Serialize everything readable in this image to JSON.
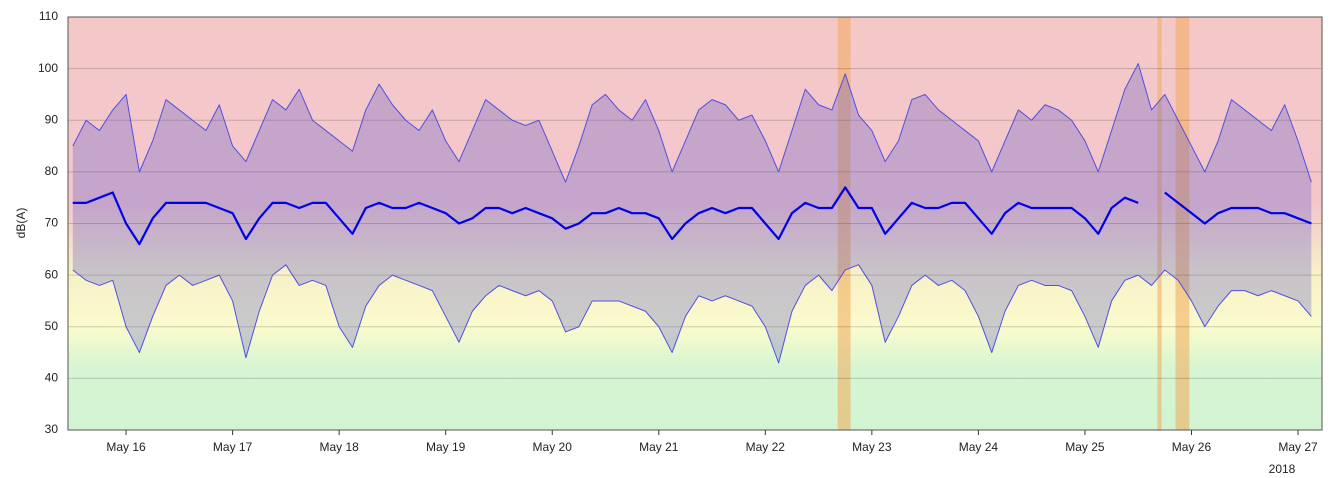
{
  "chart_data": {
    "type": "line",
    "ylabel": "dB(A)",
    "annotation": "2018",
    "x": [
      15.5,
      15.625,
      15.75,
      15.875,
      16,
      16.125,
      16.25,
      16.375,
      16.5,
      16.625,
      16.75,
      16.875,
      17,
      17.125,
      17.25,
      17.375,
      17.5,
      17.625,
      17.75,
      17.875,
      18,
      18.125,
      18.25,
      18.375,
      18.5,
      18.625,
      18.75,
      18.875,
      19,
      19.125,
      19.25,
      19.375,
      19.5,
      19.625,
      19.75,
      19.875,
      20,
      20.125,
      20.25,
      20.375,
      20.5,
      20.625,
      20.75,
      20.875,
      21,
      21.125,
      21.25,
      21.375,
      21.5,
      21.625,
      21.75,
      21.875,
      22,
      22.125,
      22.25,
      22.375,
      22.5,
      22.625,
      22.75,
      22.875,
      23,
      23.125,
      23.25,
      23.375,
      23.5,
      23.625,
      23.75,
      23.875,
      24,
      24.125,
      24.25,
      24.375,
      24.5,
      24.625,
      24.75,
      24.875,
      25,
      25.125,
      25.25,
      25.375,
      25.5,
      25.625,
      25.75,
      25.875,
      26,
      26.125,
      26.25,
      26.375,
      26.5,
      26.625,
      26.75,
      26.875,
      27,
      27.125
    ],
    "series": [
      {
        "color": "#5050e0",
        "line_width": 1,
        "values": [
          85,
          90,
          88,
          92,
          95,
          80,
          86,
          94,
          92,
          90,
          88,
          93,
          85,
          82,
          88,
          94,
          92,
          96,
          90,
          88,
          86,
          84,
          92,
          97,
          93,
          90,
          88,
          92,
          86,
          82,
          88,
          94,
          92,
          90,
          89,
          90,
          84,
          78,
          85,
          93,
          95,
          92,
          90,
          94,
          88,
          80,
          86,
          92,
          94,
          93,
          90,
          91,
          86,
          80,
          88,
          96,
          93,
          92,
          99,
          91,
          88,
          82,
          86,
          94,
          95,
          92,
          90,
          88,
          86,
          80,
          86,
          92,
          90,
          93,
          92,
          90,
          86,
          80,
          88,
          96,
          101,
          92,
          95,
          90,
          85,
          80,
          86,
          94,
          92,
          90,
          88,
          93,
          86,
          78
        ]
      },
      {
        "color": "#0000e6",
        "line_width": 2.2,
        "values": [
          74,
          74,
          75,
          76,
          70,
          66,
          71,
          74,
          74,
          74,
          74,
          73,
          72,
          67,
          71,
          74,
          74,
          73,
          74,
          74,
          71,
          68,
          73,
          74,
          73,
          73,
          74,
          73,
          72,
          70,
          71,
          73,
          73,
          72,
          73,
          72,
          71,
          69,
          70,
          72,
          72,
          73,
          72,
          72,
          71,
          67,
          70,
          72,
          73,
          72,
          73,
          73,
          70,
          67,
          72,
          74,
          73,
          73,
          77,
          73,
          73,
          68,
          71,
          74,
          73,
          73,
          74,
          74,
          71,
          68,
          72,
          74,
          73,
          73,
          73,
          73,
          71,
          68,
          73,
          75,
          74,
          null,
          76,
          74,
          72,
          70,
          72,
          73,
          73,
          73,
          72,
          72,
          71,
          70
        ]
      },
      {
        "color": "#5050e0",
        "line_width": 1,
        "values": [
          61,
          59,
          58,
          59,
          50,
          45,
          52,
          58,
          60,
          58,
          59,
          60,
          55,
          44,
          53,
          60,
          62,
          58,
          59,
          58,
          50,
          46,
          54,
          58,
          60,
          59,
          58,
          57,
          52,
          47,
          53,
          56,
          58,
          57,
          56,
          57,
          55,
          49,
          50,
          55,
          55,
          55,
          54,
          53,
          50,
          45,
          52,
          56,
          55,
          56,
          55,
          54,
          50,
          43,
          53,
          58,
          60,
          57,
          61,
          62,
          58,
          47,
          52,
          58,
          60,
          58,
          59,
          57,
          52,
          45,
          53,
          58,
          59,
          58,
          58,
          57,
          52,
          46,
          55,
          59,
          60,
          58,
          61,
          59,
          55,
          50,
          54,
          57,
          57,
          56,
          57,
          56,
          55,
          52
        ]
      }
    ],
    "range_fill": "rgba(80,80,200,0.28)",
    "highlights": [
      {
        "start": 22.68,
        "end": 22.8
      },
      {
        "start": 25.68,
        "end": 25.72
      },
      {
        "start": 25.85,
        "end": 25.98
      }
    ],
    "highlight_color": "rgba(240,170,90,0.55)",
    "xlim": [
      15.455,
      27.225
    ],
    "xticks": [
      {
        "value": 16,
        "label": "May 16"
      },
      {
        "value": 17,
        "label": "May 17"
      },
      {
        "value": 18,
        "label": "May 18"
      },
      {
        "value": 19,
        "label": "May 19"
      },
      {
        "value": 20,
        "label": "May 20"
      },
      {
        "value": 21,
        "label": "May 21"
      },
      {
        "value": 22,
        "label": "May 22"
      },
      {
        "value": 23,
        "label": "May 23"
      },
      {
        "value": 24,
        "label": "May 24"
      },
      {
        "value": 25,
        "label": "May 25"
      },
      {
        "value": 26,
        "label": "May 26"
      },
      {
        "value": 27,
        "label": "May 27"
      }
    ],
    "ylim": [
      30,
      110
    ],
    "yticks": [
      30,
      40,
      50,
      60,
      70,
      80,
      90,
      100,
      110
    ],
    "grid": true
  }
}
